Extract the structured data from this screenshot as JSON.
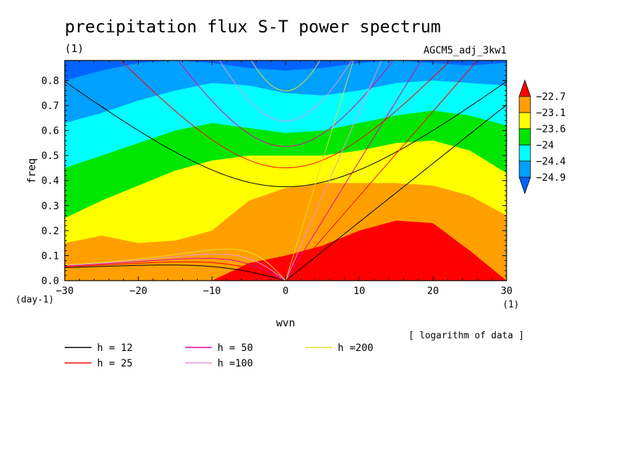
{
  "chart_data": {
    "type": "heatmap",
    "title": "precipitation flux S-T power spectrum",
    "units_left": "(1)",
    "experiment": "AGCM5_adj_3kw1",
    "xlabel": "wvn",
    "ylabel": "freq",
    "y_units": "(day-1)",
    "x_units": "(1)",
    "note": "[ logarithm of data ]",
    "xlim": [
      -30,
      30
    ],
    "ylim": [
      0,
      0.88
    ],
    "x_ticks": [
      -30,
      -20,
      -10,
      0,
      10,
      20,
      30
    ],
    "x_tick_labels": [
      "−30",
      "−20",
      "−10",
      "0",
      "10",
      "20",
      "30"
    ],
    "y_ticks": [
      0.0,
      0.1,
      0.2,
      0.3,
      0.4,
      0.5,
      0.6,
      0.7,
      0.8
    ],
    "y_tick_labels": [
      "0.0",
      "0.1",
      "0.2",
      "0.3",
      "0.4",
      "0.5",
      "0.6",
      "0.7",
      "0.8"
    ],
    "colorbar": {
      "levels": [
        "−22.7",
        "−23.1",
        "−23.6",
        "−24",
        "−24.4",
        "−24.9"
      ],
      "colors": [
        "#0064ff",
        "#00a0ff",
        "#00ffff",
        "#00e600",
        "#ffff00",
        "#ffa000",
        "#ff0000"
      ]
    },
    "contour_bands": [
      {
        "color": "#0064ff",
        "upper": [
          0.88,
          0.88,
          0.88,
          0.88,
          0.88,
          0.88,
          0.88,
          0.88,
          0.88,
          0.88,
          0.88,
          0.88,
          0.88
        ]
      },
      {
        "color": "#00a0ff",
        "upper": [
          0.8,
          0.84,
          0.87,
          0.88,
          0.87,
          0.85,
          0.84,
          0.85,
          0.87,
          0.88,
          0.87,
          0.86,
          0.87
        ]
      },
      {
        "color": "#00ffff",
        "upper": [
          0.63,
          0.67,
          0.72,
          0.76,
          0.79,
          0.78,
          0.75,
          0.74,
          0.76,
          0.79,
          0.8,
          0.79,
          0.78
        ]
      },
      {
        "color": "#00e600",
        "upper": [
          0.45,
          0.5,
          0.55,
          0.6,
          0.63,
          0.61,
          0.59,
          0.6,
          0.63,
          0.66,
          0.68,
          0.66,
          0.62
        ]
      },
      {
        "color": "#ffff00",
        "upper": [
          0.25,
          0.32,
          0.38,
          0.44,
          0.48,
          0.5,
          0.5,
          0.5,
          0.52,
          0.55,
          0.56,
          0.52,
          0.43
        ]
      },
      {
        "color": "#ffa000",
        "upper": [
          0.15,
          0.18,
          0.15,
          0.16,
          0.2,
          0.32,
          0.37,
          0.39,
          0.39,
          0.39,
          0.38,
          0.34,
          0.26
        ]
      },
      {
        "color": "#ff0000",
        "upper": [
          0.0,
          0.0,
          0.0,
          0.0,
          0.0,
          0.07,
          0.1,
          0.14,
          0.2,
          0.24,
          0.23,
          0.12,
          0.0
        ]
      }
    ],
    "contour_x": [
      -30,
      -25,
      -20,
      -15,
      -10,
      -5,
      0,
      5,
      10,
      15,
      20,
      25,
      30
    ],
    "dispersion_curves": [
      {
        "name": "h = 12",
        "color": "#000000"
      },
      {
        "name": "h = 25",
        "color": "#ff0000"
      },
      {
        "name": "h = 50",
        "color": "#e600a0"
      },
      {
        "name": "h =100",
        "color": "#e695e6"
      },
      {
        "name": "h =200",
        "color": "#e6dc32"
      }
    ],
    "grid": false,
    "legend_position": "bottom"
  }
}
